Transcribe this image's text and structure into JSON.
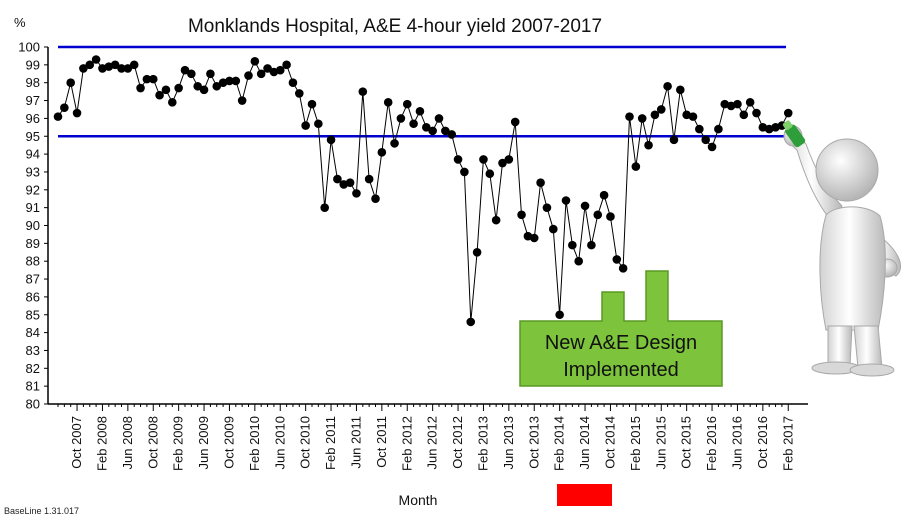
{
  "chart_data": {
    "type": "line",
    "title": "Monklands Hospital,  A&E 4-hour yield 2007-2017",
    "ylabel": "%",
    "xlabel": "Month",
    "ylim": [
      80,
      100
    ],
    "yticks": [
      80,
      81,
      82,
      83,
      84,
      85,
      86,
      87,
      88,
      89,
      90,
      91,
      92,
      93,
      94,
      95,
      96,
      97,
      98,
      99,
      100
    ],
    "start_month": "Jul 2007",
    "x_tick_labels": [
      "Oct 2007",
      "Feb 2008",
      "Jun 2008",
      "Oct 2008",
      "Feb 2009",
      "Jun 2009",
      "Oct 2009",
      "Feb 2010",
      "Jun 2010",
      "Oct 2010",
      "Feb 2011",
      "Jun 2011",
      "Oct 2011",
      "Feb 2012",
      "Jun 2012",
      "Oct 2012",
      "Feb 2013",
      "Jun 2013",
      "Oct 2013",
      "Feb 2014",
      "Jun 2014",
      "Oct 2014",
      "Feb 2015",
      "Jun 2015",
      "Oct 2015",
      "Feb 2016",
      "Jun 2016",
      "Oct 2016",
      "Feb 2017"
    ],
    "reference_lines": [
      100,
      95
    ],
    "reference_color": "#0000cc",
    "series_color": "#000000",
    "values": [
      96.1,
      96.6,
      98.0,
      96.3,
      98.8,
      99.0,
      99.3,
      98.8,
      98.9,
      99.0,
      98.8,
      98.8,
      99.0,
      97.7,
      98.2,
      98.2,
      97.3,
      97.6,
      96.9,
      97.7,
      98.7,
      98.5,
      97.8,
      97.6,
      98.5,
      97.8,
      98.0,
      98.1,
      98.1,
      97.0,
      98.4,
      99.2,
      98.5,
      98.8,
      98.6,
      98.7,
      99.0,
      98.0,
      97.4,
      95.6,
      96.8,
      95.7,
      91.0,
      94.8,
      92.6,
      92.3,
      92.4,
      91.8,
      97.5,
      92.6,
      91.5,
      94.1,
      96.9,
      94.6,
      96.0,
      96.8,
      95.7,
      96.4,
      95.5,
      95.3,
      96.0,
      95.3,
      95.1,
      93.7,
      93.0,
      84.6,
      88.5,
      93.7,
      92.9,
      90.3,
      93.5,
      93.7,
      95.8,
      90.6,
      89.4,
      89.3,
      92.4,
      91.0,
      89.8,
      85.0,
      91.4,
      88.9,
      88.0,
      91.1,
      88.9,
      90.6,
      91.7,
      90.5,
      88.1,
      87.6,
      96.1,
      93.3,
      96.0,
      94.5,
      96.2,
      96.5,
      97.8,
      94.8,
      97.6,
      96.2,
      96.1,
      95.4,
      94.8,
      94.4,
      95.4,
      96.8,
      96.7,
      96.8,
      96.2,
      96.9,
      96.3,
      95.5,
      95.4,
      95.5,
      95.6,
      96.3
    ],
    "callout": {
      "lines": [
        "New A&E Design",
        "Implemented"
      ]
    }
  },
  "footer": {
    "version": "BaseLine 1.31.017"
  },
  "colors": {
    "callout_fill": "#7dc43c",
    "callout_stroke": "#5a9a23",
    "marker_box": "#ff0000"
  },
  "figure": {
    "icon": "figure-with-pen-icon"
  }
}
